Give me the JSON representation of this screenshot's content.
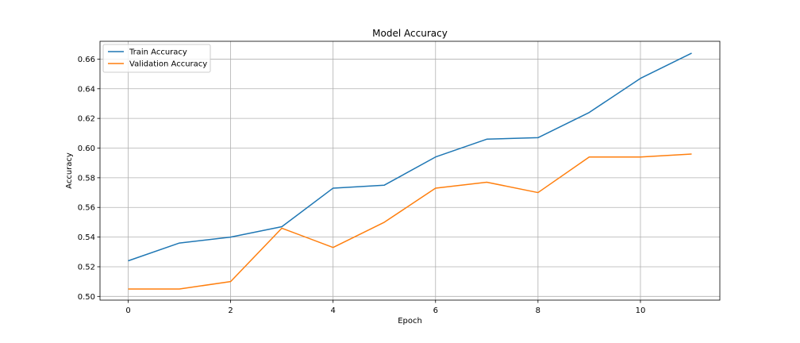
{
  "chart_data": {
    "type": "line",
    "title": "Model Accuracy",
    "xlabel": "Epoch",
    "ylabel": "Accuracy",
    "x": [
      0,
      1,
      2,
      3,
      4,
      5,
      6,
      7,
      8,
      9,
      10,
      11
    ],
    "xlim": [
      -0.55,
      11.55
    ],
    "ylim": [
      0.4975,
      0.672
    ],
    "xticks": [
      0,
      2,
      4,
      6,
      8,
      10
    ],
    "yticks": [
      0.5,
      0.52,
      0.54,
      0.56,
      0.58,
      0.6,
      0.62,
      0.64,
      0.66
    ],
    "xtick_labels": [
      "0",
      "2",
      "4",
      "6",
      "8",
      "10"
    ],
    "ytick_labels": [
      "0.50",
      "0.52",
      "0.54",
      "0.56",
      "0.58",
      "0.60",
      "0.62",
      "0.64",
      "0.66"
    ],
    "grid": true,
    "legend_position": "top-left",
    "series": [
      {
        "name": "Train Accuracy",
        "color": "#1f77b4",
        "values": [
          0.524,
          0.536,
          0.54,
          0.547,
          0.573,
          0.575,
          0.594,
          0.606,
          0.607,
          0.624,
          0.647,
          0.664
        ]
      },
      {
        "name": "Validation Accuracy",
        "color": "#ff7f0e",
        "values": [
          0.505,
          0.505,
          0.51,
          0.546,
          0.533,
          0.55,
          0.573,
          0.577,
          0.57,
          0.594,
          0.594,
          0.596
        ]
      }
    ]
  }
}
